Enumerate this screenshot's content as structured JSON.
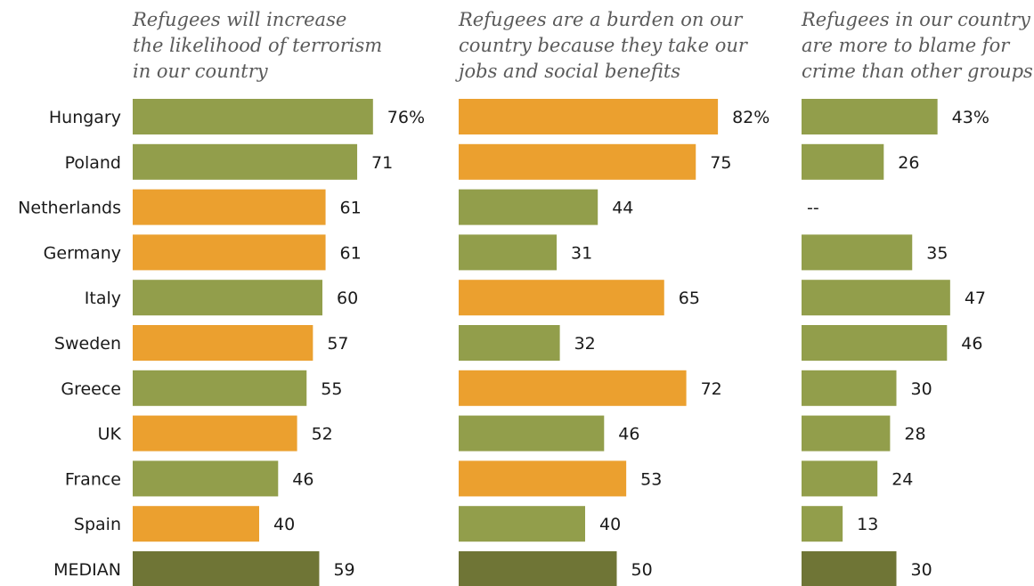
{
  "colors": {
    "above_median": "#eba02f",
    "below_median": "#929e4b",
    "median": "#6f7536"
  },
  "chart_data": {
    "type": "bar",
    "orientation": "horizontal",
    "categories": [
      "Hungary",
      "Poland",
      "Netherlands",
      "Germany",
      "Italy",
      "Sweden",
      "Greece",
      "UK",
      "France",
      "Spain",
      "MEDIAN"
    ],
    "panels": [
      {
        "title_lines": [
          "Refugees will increase",
          "the likelihood of terrorism",
          "in our country"
        ],
        "values": [
          76,
          71,
          61,
          61,
          60,
          57,
          55,
          52,
          46,
          40,
          59
        ],
        "labels": [
          "76%",
          "71",
          "61",
          "61",
          "60",
          "57",
          "55",
          "52",
          "46",
          "40",
          "59"
        ],
        "color_keys": [
          "below_median",
          "below_median",
          "above_median",
          "above_median",
          "below_median",
          "above_median",
          "below_median",
          "above_median",
          "below_median",
          "above_median",
          "median"
        ]
      },
      {
        "title_lines": [
          "Refugees are a burden on our",
          "country because they take our",
          "jobs and social benefits"
        ],
        "values": [
          82,
          75,
          44,
          31,
          65,
          32,
          72,
          46,
          53,
          40,
          50
        ],
        "labels": [
          "82%",
          "75",
          "44",
          "31",
          "65",
          "32",
          "72",
          "46",
          "53",
          "40",
          "50"
        ],
        "color_keys": [
          "above_median",
          "above_median",
          "below_median",
          "below_median",
          "above_median",
          "below_median",
          "above_median",
          "below_median",
          "above_median",
          "below_median",
          "median"
        ]
      },
      {
        "title_lines": [
          "Refugees in our country",
          "are more to blame for",
          "crime than other groups"
        ],
        "values": [
          43,
          26,
          null,
          35,
          47,
          46,
          30,
          28,
          24,
          13,
          30
        ],
        "labels": [
          "43%",
          "26",
          "--",
          "35",
          "47",
          "46",
          "30",
          "28",
          "24",
          "13",
          "30"
        ],
        "color_keys": [
          "below_median",
          "below_median",
          null,
          "below_median",
          "below_median",
          "below_median",
          "below_median",
          "below_median",
          "below_median",
          "below_median",
          "median"
        ]
      }
    ]
  }
}
